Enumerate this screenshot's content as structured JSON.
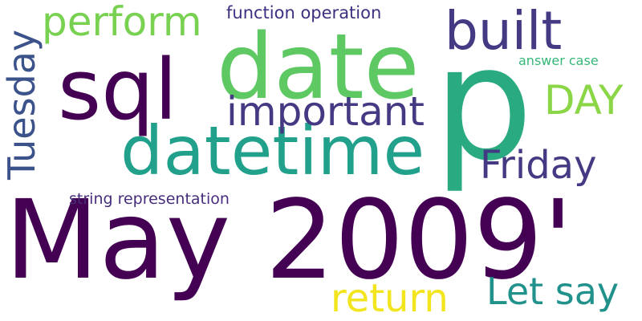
{
  "word_cloud": {
    "background": "#ffffff",
    "words": {
      "may_2009": {
        "text": "May 2009'",
        "color": "#440154"
      },
      "p": {
        "text": "p",
        "color": "#2aaa81"
      },
      "date": {
        "text": "date",
        "color": "#5ec962"
      },
      "sql": {
        "text": "sql",
        "color": "#440154"
      },
      "datetime": {
        "text": "datetime",
        "color": "#21a08c"
      },
      "built": {
        "text": "built",
        "color": "#443a83"
      },
      "important": {
        "text": "important",
        "color": "#443a83"
      },
      "perform": {
        "text": "perform",
        "color": "#79d151"
      },
      "friday": {
        "text": "Friday",
        "color": "#443a83"
      },
      "day": {
        "text": "DAY",
        "color": "#8bd646"
      },
      "return": {
        "text": "return",
        "color": "#f2e51d"
      },
      "let_say": {
        "text": "Let say",
        "color": "#21918c"
      },
      "tuesday": {
        "text": "Tuesday",
        "color": "#3b528b"
      },
      "function_operation": {
        "text": "function operation",
        "color": "#3b3180"
      },
      "string_representation": {
        "text": "string representation",
        "color": "#472d7b"
      },
      "answer_case": {
        "text": "answer case",
        "color": "#35b779"
      }
    }
  }
}
